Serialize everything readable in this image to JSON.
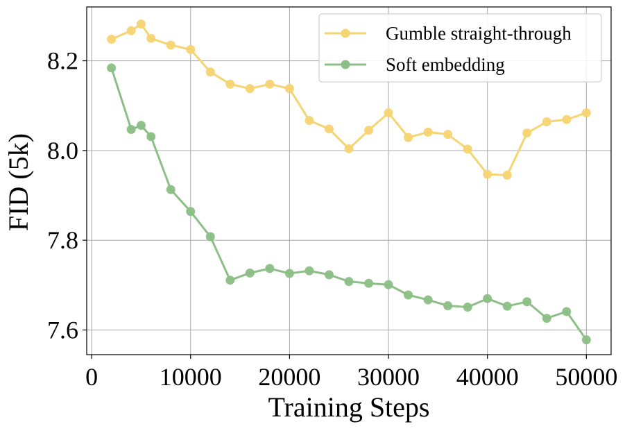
{
  "chart_data": {
    "type": "line",
    "title": "",
    "xlabel": "Training Steps",
    "ylabel": "FID (5k)",
    "xlim": [
      -500,
      52500
    ],
    "ylim": [
      7.545,
      8.32
    ],
    "xticks": [
      0,
      10000,
      20000,
      30000,
      40000,
      50000
    ],
    "xtick_labels": [
      "0",
      "10000",
      "20000",
      "30000",
      "40000",
      "50000"
    ],
    "yticks": [
      7.6,
      7.8,
      8.0,
      8.2
    ],
    "ytick_labels": [
      "7.6",
      "7.8",
      "8.0",
      "8.2"
    ],
    "grid": true,
    "legend_position": "top-right",
    "series": [
      {
        "name": "Gumble straight-through",
        "color": "#f5d472",
        "x": [
          2000,
          4000,
          5000,
          6000,
          8000,
          10000,
          12000,
          14000,
          16000,
          18000,
          20000,
          22000,
          24000,
          26000,
          28000,
          30000,
          32000,
          34000,
          36000,
          38000,
          40000,
          42000,
          44000,
          46000,
          48000,
          50000
        ],
        "values": [
          8.248,
          8.267,
          8.282,
          8.25,
          8.235,
          8.225,
          8.175,
          8.148,
          8.138,
          8.148,
          8.138,
          8.067,
          8.048,
          8.004,
          8.045,
          8.084,
          8.029,
          8.041,
          8.036,
          8.003,
          7.947,
          7.945,
          8.039,
          8.064,
          8.069,
          8.084
        ]
      },
      {
        "name": "Soft embedding",
        "color": "#8cbf86",
        "x": [
          2000,
          4000,
          5000,
          6000,
          8000,
          10000,
          12000,
          14000,
          16000,
          18000,
          20000,
          22000,
          24000,
          26000,
          28000,
          30000,
          32000,
          34000,
          36000,
          38000,
          40000,
          42000,
          44000,
          46000,
          48000,
          50000
        ],
        "values": [
          8.184,
          8.047,
          8.056,
          8.031,
          7.913,
          7.864,
          7.808,
          7.711,
          7.727,
          7.737,
          7.726,
          7.732,
          7.723,
          7.708,
          7.704,
          7.701,
          7.678,
          7.667,
          7.654,
          7.651,
          7.67,
          7.653,
          7.663,
          7.626,
          7.641,
          7.578
        ]
      }
    ]
  }
}
